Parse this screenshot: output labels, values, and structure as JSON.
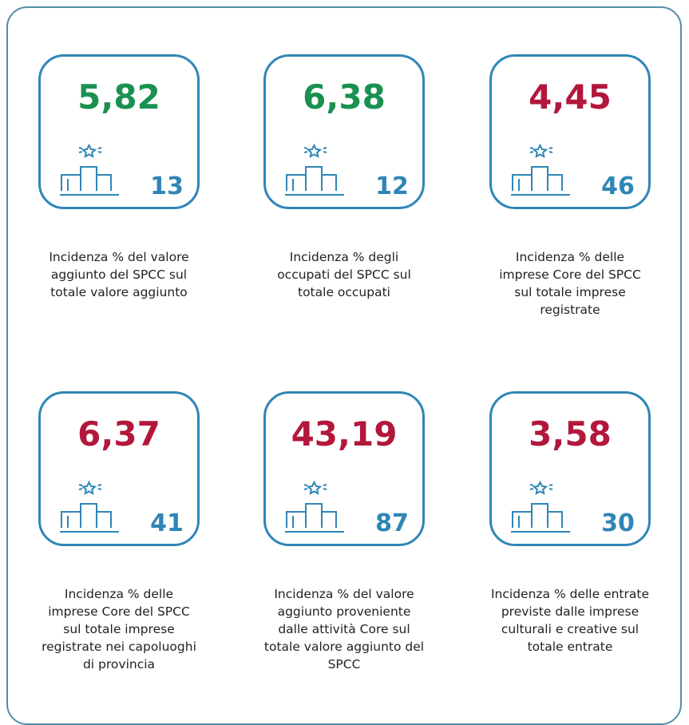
{
  "cards": [
    {
      "value": "5,82",
      "color": "#1a9150",
      "rank": 13,
      "description": [
        "Incidenza % del valore",
        "aggiunto del SPCC sul",
        "totale valore aggiunto"
      ]
    },
    {
      "value": "6,38",
      "color": "#1a9150",
      "rank": 12,
      "description": [
        "Incidenza % degli",
        "occupati del SPCC sul",
        "totale occupati"
      ]
    },
    {
      "value": "4,45",
      "color": "#b3173c",
      "rank": 46,
      "description": [
        "Incidenza % delle",
        "imprese Core del SPCC",
        "sul totale imprese",
        "registrate"
      ]
    },
    {
      "value": "6,37",
      "color": "#b3173c",
      "rank": 41,
      "description": [
        "Incidenza % delle",
        "imprese Core del SPCC",
        "sul totale imprese",
        "registrate nei capoluoghi",
        "di provincia"
      ]
    },
    {
      "value": "43,19",
      "color": "#b3173c",
      "rank": 87,
      "description": [
        "Incidenza % del valore",
        "aggiunto proveniente",
        "dalle attività Core sul",
        "totale valore aggiunto del",
        "SPCC"
      ]
    },
    {
      "value": "3,58",
      "color": "#b3173c",
      "rank": 30,
      "description": [
        "Incidenza % delle entrate",
        "previste dalle imprese",
        "culturali e creative sul",
        "totale entrate"
      ]
    }
  ]
}
